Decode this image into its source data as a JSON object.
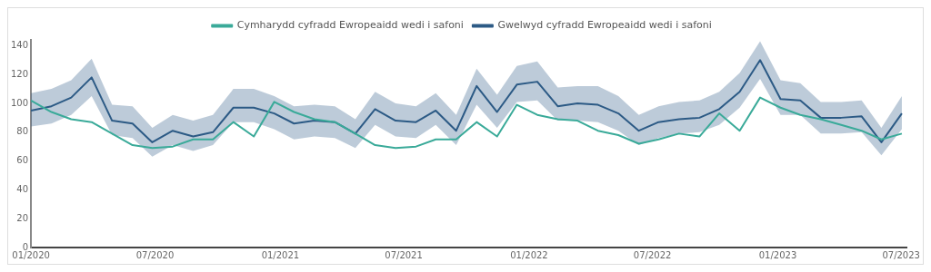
{
  "chart_data": {
    "type": "line",
    "x": [
      "2020-01-01",
      "2020-01-31",
      "2020-02-29",
      "2020-03-30",
      "2020-04-29",
      "2020-05-29",
      "2020-06-27",
      "2020-07-27",
      "2020-08-26",
      "2020-09-24",
      "2020-10-24",
      "2020-11-23",
      "2020-12-23",
      "2021-01-21",
      "2021-02-20",
      "2021-03-22",
      "2021-04-21",
      "2021-05-20",
      "2021-06-19",
      "2021-07-19",
      "2021-08-17",
      "2021-09-16",
      "2021-10-16",
      "2021-11-15",
      "2021-12-14",
      "2022-01-13",
      "2022-02-12",
      "2022-03-13",
      "2022-04-12",
      "2022-05-12",
      "2022-06-11",
      "2022-07-10",
      "2022-08-09",
      "2022-09-08",
      "2022-10-07",
      "2022-11-06",
      "2022-12-06",
      "2023-01-05",
      "2023-02-03",
      "2023-03-05",
      "2023-04-04",
      "2023-05-04",
      "2023-06-02",
      "2023-07-02"
    ],
    "series": [
      {
        "name": "Cymharydd cyfradd Ewropeaidd wedi i safoni",
        "color": "#3aaa99",
        "values": [
          102,
          94,
          89,
          87,
          79,
          71,
          69,
          70,
          75,
          75,
          87,
          77,
          101,
          94,
          89,
          87,
          79,
          71,
          69,
          70,
          75,
          75,
          87,
          77,
          99,
          92,
          89,
          88,
          81,
          78,
          72,
          75,
          79,
          77,
          93,
          81,
          104,
          97,
          92,
          89,
          85,
          81,
          75,
          79
        ]
      },
      {
        "name": "Gwelwyd cyfradd Ewropeaidd wedi i safoni",
        "color": "#2c5a85",
        "values": [
          95,
          98,
          104,
          118,
          88,
          86,
          73,
          81,
          77,
          80,
          97,
          97,
          93,
          86,
          88,
          87,
          79,
          96,
          88,
          87,
          95,
          81,
          112,
          94,
          113,
          115,
          98,
          100,
          99,
          93,
          81,
          87,
          89,
          90,
          96,
          108,
          130,
          103,
          102,
          90,
          90,
          91,
          73,
          93
        ],
        "lower": [
          84,
          86,
          92,
          105,
          78,
          76,
          63,
          71,
          67,
          71,
          87,
          87,
          82,
          75,
          77,
          76,
          69,
          85,
          77,
          76,
          85,
          71,
          99,
          83,
          101,
          102,
          88,
          88,
          87,
          81,
          71,
          76,
          79,
          80,
          85,
          97,
          117,
          92,
          92,
          79,
          79,
          80,
          64,
          82
        ],
        "upper": [
          107,
          110,
          116,
          131,
          99,
          98,
          83,
          92,
          88,
          92,
          110,
          110,
          105,
          98,
          99,
          98,
          89,
          108,
          100,
          98,
          107,
          92,
          124,
          106,
          126,
          129,
          111,
          112,
          112,
          105,
          92,
          98,
          101,
          102,
          108,
          121,
          143,
          116,
          114,
          101,
          101,
          102,
          83,
          105
        ]
      }
    ],
    "xlim": [
      "2020-01-01",
      "2023-07-10"
    ],
    "xticks": [
      {
        "value": "2020-01-01",
        "label": "01/2020"
      },
      {
        "value": "2020-07-01",
        "label": "07/2020"
      },
      {
        "value": "2021-01-01",
        "label": "01/2021"
      },
      {
        "value": "2021-07-01",
        "label": "07/2021"
      },
      {
        "value": "2022-01-01",
        "label": "01/2022"
      },
      {
        "value": "2022-07-01",
        "label": "07/2022"
      },
      {
        "value": "2023-01-01",
        "label": "01/2023"
      },
      {
        "value": "2023-07-01",
        "label": "07/2023"
      }
    ],
    "ylim": [
      0,
      144
    ],
    "yticks": [
      0,
      20,
      40,
      60,
      80,
      100,
      120,
      140
    ],
    "legend": "top",
    "grid": false,
    "marker": "none",
    "line_style": "solid"
  }
}
